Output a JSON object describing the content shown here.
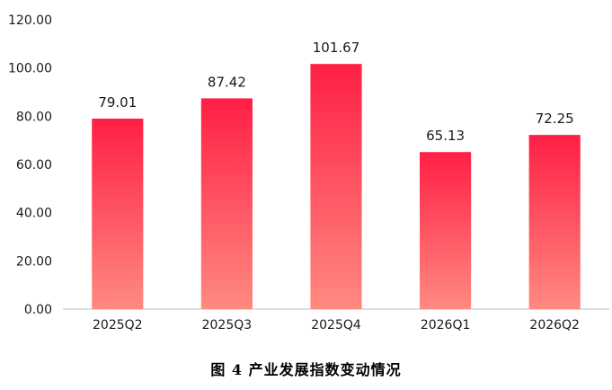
{
  "chart_data": {
    "type": "bar",
    "categories": [
      "2025Q2",
      "2025Q3",
      "2025Q4",
      "2026Q1",
      "2026Q2"
    ],
    "values": [
      79.01,
      87.42,
      101.67,
      65.13,
      72.25
    ],
    "value_labels": [
      "79.01",
      "87.42",
      "101.67",
      "65.13",
      "72.25"
    ],
    "yticks": [
      "0.00",
      "20.00",
      "40.00",
      "60.00",
      "80.00",
      "100.00",
      "120.00"
    ],
    "ylim": [
      0,
      120
    ],
    "grid": false,
    "legend": "none",
    "colors": {
      "bar_top": "#ff1f45",
      "bar_bottom": "#ff8a80",
      "axis": "#bfbfbf",
      "text": "#1a1a1a"
    }
  },
  "caption": "图 4 产业发展指数变动情况"
}
